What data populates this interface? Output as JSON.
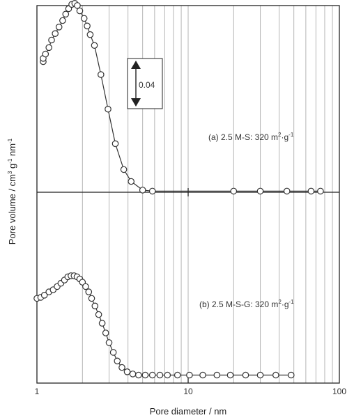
{
  "chart_data": {
    "type": "scatter",
    "xscale": "log",
    "xlim": [
      1,
      100
    ],
    "xlabel": "Pore diameter / nm",
    "ylabel": "Pore volume / cm3 g-1 nm-1",
    "x_tick_labels": [
      "1",
      "10",
      "100"
    ],
    "grid": "vertical",
    "scale_bar": {
      "label": "0.04",
      "value": 0.04
    },
    "series": [
      {
        "name": "(a) 2.5 M-S: 320 m2 g-1",
        "x": [
          1.1,
          1.1,
          1.14,
          1.2,
          1.25,
          1.32,
          1.4,
          1.48,
          1.55,
          1.62,
          1.7,
          1.78,
          1.85,
          1.92,
          2.05,
          2.15,
          2.25,
          2.4,
          2.65,
          2.95,
          3.3,
          3.75,
          4.2,
          5,
          5.8,
          20,
          30,
          45,
          65,
          75
        ],
        "y": [
          0.121,
          0.124,
          0.128,
          0.134,
          0.141,
          0.147,
          0.153,
          0.159,
          0.165,
          0.17,
          0.174,
          0.175,
          0.173,
          0.168,
          0.161,
          0.154,
          0.146,
          0.136,
          0.109,
          0.077,
          0.045,
          0.021,
          0.01,
          0.002,
          0.001,
          0.001,
          0.001,
          0.001,
          0.001,
          0.001
        ]
      },
      {
        "name": "(b) 2.5 M-S-G: 320 m2 g-1",
        "x": [
          1.0,
          1.06,
          1.12,
          1.2,
          1.28,
          1.36,
          1.44,
          1.52,
          1.6,
          1.68,
          1.76,
          1.84,
          1.92,
          2.0,
          2.1,
          2.2,
          2.3,
          2.42,
          2.56,
          2.7,
          2.85,
          3.0,
          3.2,
          3.4,
          3.65,
          3.95,
          4.3,
          4.7,
          5.2,
          5.8,
          6.5,
          7.3,
          8.5,
          10.2,
          12.5,
          15.5,
          19,
          24,
          30,
          38,
          48
        ],
        "y": [
          0.072,
          0.073,
          0.075,
          0.078,
          0.08,
          0.083,
          0.086,
          0.089,
          0.092,
          0.093,
          0.093,
          0.092,
          0.09,
          0.087,
          0.083,
          0.078,
          0.072,
          0.065,
          0.057,
          0.049,
          0.04,
          0.031,
          0.022,
          0.014,
          0.008,
          0.004,
          0.002,
          0.001,
          0.001,
          0.001,
          0.001,
          0.001,
          0.001,
          0.001,
          0.001,
          0.001,
          0.001,
          0.001,
          0.001,
          0.001,
          0.001
        ]
      }
    ]
  }
}
